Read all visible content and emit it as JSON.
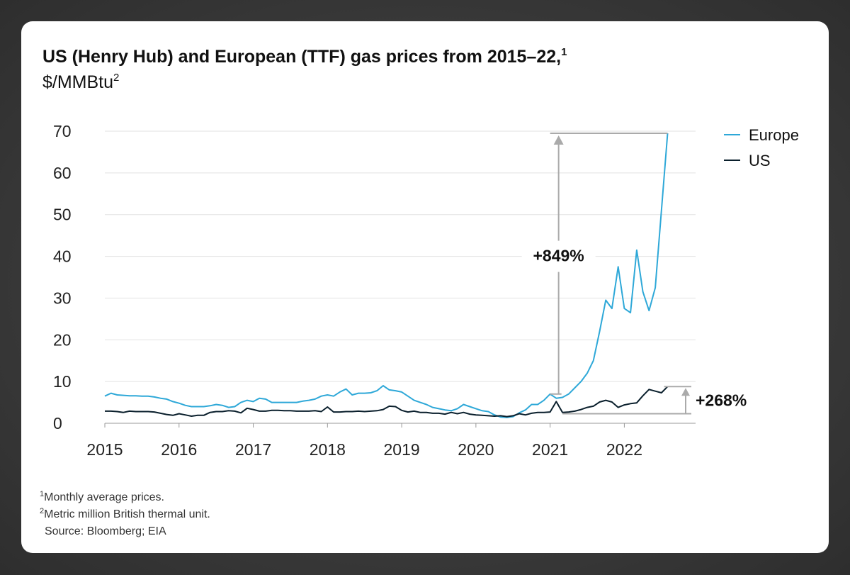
{
  "chart_data": {
    "type": "line",
    "title": "US (Henry Hub) and European (TTF) gas prices from 2015–22,",
    "title_note": "1",
    "subtitle": "$/MMBtu",
    "subtitle_note": "2",
    "x": [
      2015,
      2015.083,
      2015.167,
      2015.25,
      2015.333,
      2015.417,
      2015.5,
      2015.583,
      2015.667,
      2015.75,
      2015.833,
      2015.917,
      2016,
      2016.083,
      2016.167,
      2016.25,
      2016.333,
      2016.417,
      2016.5,
      2016.583,
      2016.667,
      2016.75,
      2016.833,
      2016.917,
      2017,
      2017.083,
      2017.167,
      2017.25,
      2017.333,
      2017.417,
      2017.5,
      2017.583,
      2017.667,
      2017.75,
      2017.833,
      2017.917,
      2018,
      2018.083,
      2018.167,
      2018.25,
      2018.333,
      2018.417,
      2018.5,
      2018.583,
      2018.667,
      2018.75,
      2018.833,
      2018.917,
      2019,
      2019.083,
      2019.167,
      2019.25,
      2019.333,
      2019.417,
      2019.5,
      2019.583,
      2019.667,
      2019.75,
      2019.833,
      2019.917,
      2020,
      2020.083,
      2020.167,
      2020.25,
      2020.333,
      2020.417,
      2020.5,
      2020.583,
      2020.667,
      2020.75,
      2020.833,
      2020.917,
      2021,
      2021.083,
      2021.167,
      2021.25,
      2021.333,
      2021.417,
      2021.5,
      2021.583,
      2021.667,
      2021.75,
      2021.833,
      2021.917,
      2022,
      2022.083,
      2022.167,
      2022.25,
      2022.333,
      2022.417,
      2022.5,
      2022.583
    ],
    "series": [
      {
        "name": "Europe",
        "color": "#2ea8d8",
        "values": [
          6.5,
          7.2,
          6.8,
          6.7,
          6.6,
          6.6,
          6.5,
          6.5,
          6.3,
          6.0,
          5.8,
          5.2,
          4.8,
          4.3,
          4.0,
          4.0,
          4.0,
          4.2,
          4.5,
          4.3,
          3.8,
          4.0,
          5.0,
          5.5,
          5.2,
          6.0,
          5.8,
          5.0,
          5.0,
          5.0,
          5.0,
          5.0,
          5.3,
          5.5,
          5.8,
          6.5,
          6.8,
          6.5,
          7.5,
          8.2,
          6.8,
          7.2,
          7.2,
          7.3,
          7.8,
          9.0,
          8.0,
          7.8,
          7.5,
          6.5,
          5.5,
          5.0,
          4.5,
          3.8,
          3.5,
          3.2,
          3.0,
          3.5,
          4.5,
          4.0,
          3.5,
          3.0,
          2.8,
          2.0,
          1.5,
          1.4,
          1.6,
          2.5,
          3.2,
          4.5,
          4.5,
          5.5,
          7.0,
          6.0,
          6.2,
          7.0,
          8.5,
          10,
          12,
          15,
          22,
          29.5,
          27.5,
          37.5,
          27.5,
          26.5,
          41.5,
          31.5,
          27,
          32.5,
          51,
          69.5
        ]
      },
      {
        "name": "US",
        "color": "#0a1f2c",
        "values": [
          2.9,
          2.9,
          2.8,
          2.6,
          2.9,
          2.8,
          2.8,
          2.8,
          2.7,
          2.4,
          2.1,
          1.9,
          2.3,
          2.0,
          1.7,
          1.9,
          1.9,
          2.6,
          2.8,
          2.8,
          3.0,
          2.9,
          2.5,
          3.6,
          3.3,
          2.9,
          2.9,
          3.1,
          3.1,
          3.0,
          3.0,
          2.9,
          2.9,
          2.9,
          3.0,
          2.8,
          3.9,
          2.7,
          2.7,
          2.8,
          2.8,
          2.9,
          2.8,
          2.9,
          3.0,
          3.3,
          4.1,
          4.0,
          3.1,
          2.7,
          2.9,
          2.6,
          2.6,
          2.4,
          2.4,
          2.2,
          2.6,
          2.3,
          2.6,
          2.2,
          2.0,
          1.9,
          1.8,
          1.7,
          1.8,
          1.6,
          1.8,
          2.3,
          2.0,
          2.4,
          2.6,
          2.6,
          2.7,
          5.2,
          2.6,
          2.7,
          2.9,
          3.3,
          3.8,
          4.1,
          5.1,
          5.5,
          5.1,
          3.8,
          4.4,
          4.7,
          4.9,
          6.6,
          8.1,
          7.7,
          7.3,
          8.8
        ]
      }
    ],
    "xlim": [
      2015,
      2022.96
    ],
    "xticks": [
      2015,
      2016,
      2017,
      2018,
      2019,
      2020,
      2021,
      2022
    ],
    "ylim": [
      0,
      70
    ],
    "yticks": [
      0,
      10,
      20,
      30,
      40,
      50,
      60,
      70
    ],
    "grid": true,
    "legend": "top-right",
    "annotations": [
      "+849%",
      "+268%"
    ],
    "footnotes": [
      {
        "mark": "1",
        "text": "Monthly average prices."
      },
      {
        "mark": "2",
        "text": "Metric million British thermal unit."
      }
    ],
    "source": "Source: Bloomberg; EIA"
  }
}
